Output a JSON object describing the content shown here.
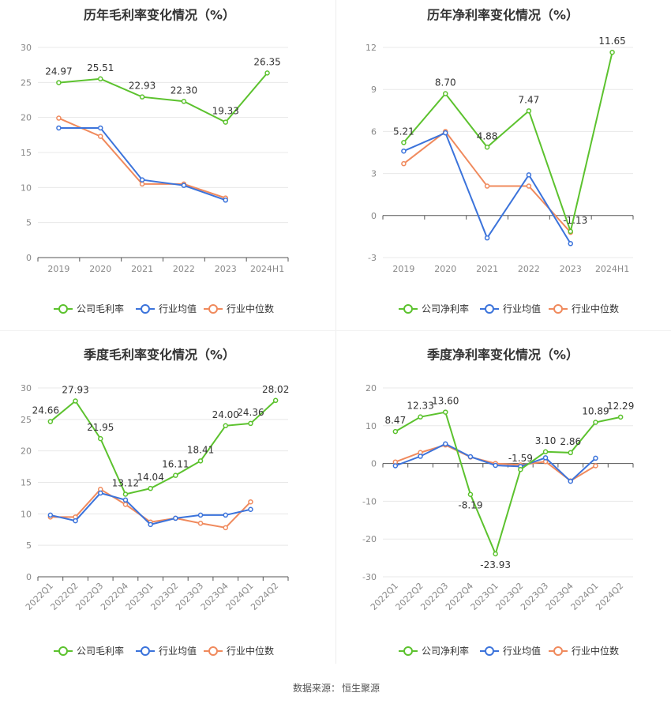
{
  "source": {
    "label": "数据来源：",
    "name": "恒生聚源"
  },
  "charts": [
    {
      "type": "line",
      "title": "历年毛利率变化情况（%）",
      "categories": [
        "2019",
        "2020",
        "2021",
        "2022",
        "2023",
        "2024H1"
      ],
      "ylim": [
        0,
        30
      ],
      "yticks": [
        0,
        5,
        10,
        15,
        20,
        25,
        30
      ],
      "grid": true,
      "legend": "bottom",
      "series": [
        {
          "name": "公司毛利率",
          "color": "#5cc22e",
          "labeled": true,
          "values": [
            24.97,
            25.51,
            22.93,
            22.3,
            19.33,
            26.35
          ],
          "labels": [
            "24.97",
            "25.51",
            "22.93",
            "22.30",
            "19.33",
            "26.35"
          ]
        },
        {
          "name": "行业均值",
          "color": "#3b73db",
          "labeled": false,
          "values": [
            18.5,
            18.5,
            11.1,
            10.3,
            8.2,
            null
          ]
        },
        {
          "name": "行业中位数",
          "color": "#f08a5d",
          "labeled": false,
          "values": [
            19.9,
            17.3,
            10.5,
            10.5,
            8.5,
            null
          ]
        }
      ]
    },
    {
      "type": "line",
      "title": "历年净利率变化情况（%）",
      "categories": [
        "2019",
        "2020",
        "2021",
        "2022",
        "2023",
        "2024H1"
      ],
      "ylim": [
        -3,
        12
      ],
      "yticks": [
        -3,
        0,
        3,
        6,
        9,
        12
      ],
      "grid": true,
      "legend": "bottom",
      "series": [
        {
          "name": "公司净利率",
          "color": "#5cc22e",
          "labeled": true,
          "values": [
            5.21,
            8.7,
            4.88,
            7.47,
            -1.13,
            11.65
          ],
          "labels": [
            "5.21",
            "8.70",
            "4.88",
            "7.47",
            "-1.13",
            "11.65"
          ]
        },
        {
          "name": "行业均值",
          "color": "#3b73db",
          "labeled": false,
          "values": [
            4.6,
            5.9,
            -1.6,
            2.9,
            -2.0,
            null
          ]
        },
        {
          "name": "行业中位数",
          "color": "#f08a5d",
          "labeled": false,
          "values": [
            3.7,
            6.0,
            2.1,
            2.1,
            -1.2,
            null
          ]
        }
      ]
    },
    {
      "type": "line",
      "title": "季度毛利率变化情况（%）",
      "categories": [
        "2022Q1",
        "2022Q2",
        "2022Q3",
        "2022Q4",
        "2023Q1",
        "2023Q2",
        "2023Q3",
        "2023Q4",
        "2024Q1",
        "2024Q2"
      ],
      "ylim": [
        0,
        30
      ],
      "yticks": [
        0,
        5,
        10,
        15,
        20,
        25,
        30
      ],
      "grid": true,
      "legend": "bottom",
      "series": [
        {
          "name": "公司毛利率",
          "color": "#5cc22e",
          "labeled": true,
          "values": [
            24.66,
            27.93,
            21.95,
            13.12,
            14.04,
            16.11,
            18.41,
            24.0,
            24.36,
            28.02
          ],
          "labels": [
            "24.66",
            "27.93",
            "21.95",
            "13.12",
            "14.04",
            "16.11",
            "18.41",
            "24.00",
            "24.36",
            "28.02"
          ]
        },
        {
          "name": "行业均值",
          "color": "#3b73db",
          "labeled": false,
          "values": [
            9.8,
            8.9,
            13.3,
            12.2,
            8.3,
            9.3,
            9.8,
            9.8,
            10.7,
            null
          ]
        },
        {
          "name": "行业中位数",
          "color": "#f08a5d",
          "labeled": false,
          "values": [
            9.5,
            9.5,
            13.9,
            11.5,
            8.7,
            9.3,
            8.5,
            7.8,
            11.9,
            null
          ]
        }
      ]
    },
    {
      "type": "line",
      "title": "季度净利率变化情况（%）",
      "categories": [
        "2022Q1",
        "2022Q2",
        "2022Q3",
        "2022Q4",
        "2023Q1",
        "2023Q2",
        "2023Q3",
        "2023Q4",
        "2024Q1",
        "2024Q2"
      ],
      "ylim": [
        -30,
        20
      ],
      "yticks": [
        -30,
        -20,
        -10,
        0,
        10,
        20
      ],
      "grid": true,
      "legend": "bottom",
      "series": [
        {
          "name": "公司净利率",
          "color": "#5cc22e",
          "labeled": true,
          "values": [
            8.47,
            12.33,
            13.6,
            -8.19,
            -23.93,
            -1.59,
            3.1,
            2.86,
            10.89,
            12.29
          ],
          "labels": [
            "8.47",
            "12.33",
            "13.60",
            "-8.19",
            "-23.93",
            "-1.59",
            "3.10",
            "2.86",
            "10.89",
            "12.29"
          ]
        },
        {
          "name": "行业均值",
          "color": "#3b73db",
          "labeled": false,
          "values": [
            -0.6,
            1.9,
            5.2,
            1.8,
            -0.5,
            -0.8,
            1.5,
            -4.7,
            1.4,
            null
          ]
        },
        {
          "name": "行业中位数",
          "color": "#f08a5d",
          "labeled": false,
          "values": [
            0.4,
            2.9,
            4.9,
            1.7,
            0.0,
            -0.4,
            0.5,
            -4.6,
            -0.6,
            null
          ]
        }
      ]
    }
  ]
}
